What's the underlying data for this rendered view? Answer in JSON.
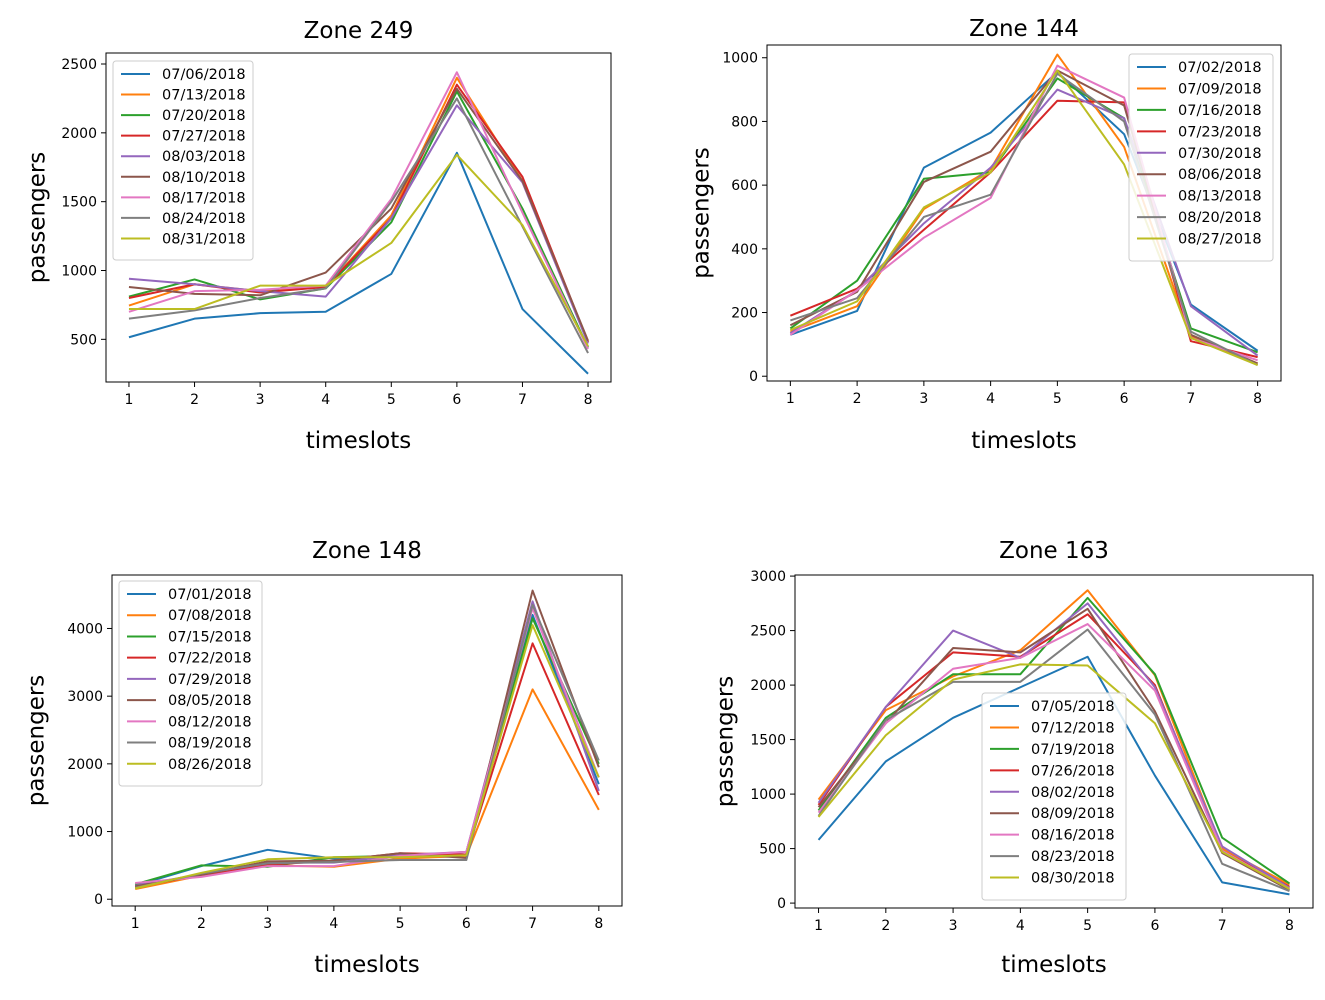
{
  "chart_data": [
    {
      "type": "line",
      "title": "Zone 249",
      "xlabel": "timeslots",
      "ylabel": "passengers",
      "x": [
        1,
        2,
        3,
        4,
        5,
        6,
        7,
        8
      ],
      "xlim": [
        0.65,
        8.35
      ],
      "ylim": [
        190,
        2580
      ],
      "yticks": [
        500,
        1000,
        1500,
        2000,
        2500
      ],
      "legend": "top-left",
      "series": [
        {
          "name": "07/06/2018",
          "values": [
            515,
            650,
            690,
            700,
            975,
            1855,
            720,
            250
          ]
        },
        {
          "name": "07/13/2018",
          "values": [
            745,
            900,
            850,
            880,
            1400,
            2400,
            1650,
            480
          ]
        },
        {
          "name": "07/20/2018",
          "values": [
            810,
            935,
            790,
            870,
            1350,
            2300,
            1450,
            440
          ]
        },
        {
          "name": "07/27/2018",
          "values": [
            800,
            900,
            840,
            880,
            1380,
            2350,
            1680,
            480
          ]
        },
        {
          "name": "08/03/2018",
          "values": [
            940,
            900,
            850,
            810,
            1380,
            2200,
            1640,
            470
          ]
        },
        {
          "name": "08/10/2018",
          "values": [
            880,
            830,
            820,
            985,
            1450,
            2320,
            1650,
            490
          ]
        },
        {
          "name": "08/17/2018",
          "values": [
            700,
            850,
            860,
            890,
            1520,
            2440,
            1420,
            430
          ]
        },
        {
          "name": "08/24/2018",
          "values": [
            650,
            710,
            800,
            870,
            1500,
            2250,
            1320,
            400
          ]
        },
        {
          "name": "08/31/2018",
          "values": [
            720,
            720,
            890,
            890,
            1200,
            1840,
            1330,
            450
          ]
        }
      ]
    },
    {
      "type": "line",
      "title": "Zone 144",
      "xlabel": "timeslots",
      "ylabel": "passengers",
      "x": [
        1,
        2,
        3,
        4,
        5,
        6,
        7,
        8
      ],
      "xlim": [
        0.65,
        8.35
      ],
      "ylim": [
        -15,
        1040
      ],
      "yticks": [
        0,
        200,
        400,
        600,
        800,
        1000
      ],
      "legend": "top-right",
      "series": [
        {
          "name": "07/02/2018",
          "values": [
            130,
            205,
            655,
            765,
            955,
            760,
            225,
            80
          ]
        },
        {
          "name": "07/09/2018",
          "values": [
            140,
            220,
            525,
            650,
            1010,
            720,
            125,
            40
          ]
        },
        {
          "name": "07/16/2018",
          "values": [
            150,
            300,
            620,
            640,
            935,
            810,
            150,
            75
          ]
        },
        {
          "name": "07/23/2018",
          "values": [
            190,
            275,
            460,
            640,
            865,
            860,
            110,
            60
          ]
        },
        {
          "name": "07/30/2018",
          "values": [
            135,
            270,
            480,
            655,
            900,
            810,
            220,
            65
          ]
        },
        {
          "name": "08/06/2018",
          "values": [
            160,
            265,
            610,
            705,
            960,
            850,
            130,
            40
          ]
        },
        {
          "name": "08/13/2018",
          "values": [
            130,
            270,
            435,
            560,
            975,
            875,
            120,
            50
          ]
        },
        {
          "name": "08/20/2018",
          "values": [
            175,
            245,
            500,
            570,
            950,
            800,
            140,
            35
          ]
        },
        {
          "name": "08/27/2018",
          "values": [
            145,
            235,
            530,
            640,
            960,
            665,
            120,
            35
          ]
        }
      ]
    },
    {
      "type": "line",
      "title": "Zone 148",
      "xlabel": "timeslots",
      "ylabel": "passengers",
      "x": [
        1,
        2,
        3,
        4,
        5,
        6,
        7,
        8
      ],
      "xlim": [
        0.65,
        8.35
      ],
      "ylim": [
        -100,
        4790
      ],
      "yticks": [
        0,
        1000,
        2000,
        3000,
        4000
      ],
      "legend": "top-left",
      "series": [
        {
          "name": "07/01/2018",
          "values": [
            200,
            490,
            730,
            600,
            620,
            700,
            4200,
            1700
          ]
        },
        {
          "name": "07/08/2018",
          "values": [
            150,
            350,
            500,
            480,
            600,
            640,
            3100,
            1320
          ]
        },
        {
          "name": "07/15/2018",
          "values": [
            220,
            500,
            480,
            620,
            640,
            660,
            4150,
            2000
          ]
        },
        {
          "name": "07/22/2018",
          "values": [
            180,
            360,
            510,
            570,
            680,
            660,
            3780,
            1540
          ]
        },
        {
          "name": "07/29/2018",
          "values": [
            200,
            370,
            540,
            540,
            650,
            700,
            4400,
            1600
          ]
        },
        {
          "name": "08/05/2018",
          "values": [
            190,
            360,
            560,
            570,
            680,
            610,
            4560,
            1950
          ]
        },
        {
          "name": "08/12/2018",
          "values": [
            240,
            330,
            490,
            490,
            640,
            700,
            4300,
            1800
          ]
        },
        {
          "name": "08/19/2018",
          "values": [
            170,
            380,
            530,
            550,
            580,
            580,
            4350,
            2050
          ]
        },
        {
          "name": "08/26/2018",
          "values": [
            160,
            390,
            590,
            620,
            620,
            650,
            4050,
            1800
          ]
        }
      ]
    },
    {
      "type": "line",
      "title": "Zone 163",
      "xlabel": "timeslots",
      "ylabel": "passengers",
      "x": [
        1,
        2,
        3,
        4,
        5,
        6,
        7,
        8
      ],
      "xlim": [
        0.65,
        8.35
      ],
      "ylim": [
        -45,
        3010
      ],
      "yticks": [
        0,
        500,
        1000,
        1500,
        2000,
        2500,
        3000
      ],
      "legend": "lower-center",
      "series": [
        {
          "name": "07/05/2018",
          "values": [
            580,
            1300,
            1700,
            1980,
            2260,
            1170,
            190,
            80
          ]
        },
        {
          "name": "07/12/2018",
          "values": [
            950,
            1770,
            2080,
            2320,
            2870,
            2090,
            500,
            170
          ]
        },
        {
          "name": "07/19/2018",
          "values": [
            850,
            1700,
            2100,
            2100,
            2800,
            2100,
            600,
            180
          ]
        },
        {
          "name": "07/26/2018",
          "values": [
            900,
            1800,
            2300,
            2260,
            2650,
            2000,
            480,
            150
          ]
        },
        {
          "name": "08/02/2018",
          "values": [
            920,
            1800,
            2500,
            2250,
            2750,
            1980,
            520,
            140
          ]
        },
        {
          "name": "08/09/2018",
          "values": [
            880,
            1650,
            2340,
            2300,
            2700,
            1760,
            460,
            120
          ]
        },
        {
          "name": "08/16/2018",
          "values": [
            830,
            1650,
            2150,
            2250,
            2560,
            1950,
            480,
            130
          ]
        },
        {
          "name": "08/23/2018",
          "values": [
            800,
            1680,
            2030,
            2030,
            2510,
            1730,
            360,
            110
          ]
        },
        {
          "name": "08/30/2018",
          "values": [
            790,
            1540,
            2050,
            2190,
            2180,
            1650,
            470,
            130
          ]
        }
      ]
    }
  ],
  "colors": [
    "#1f77b4",
    "#ff7f0e",
    "#2ca02c",
    "#d62728",
    "#9467bd",
    "#8c564b",
    "#e377c2",
    "#7f7f7f",
    "#bcbd22"
  ]
}
